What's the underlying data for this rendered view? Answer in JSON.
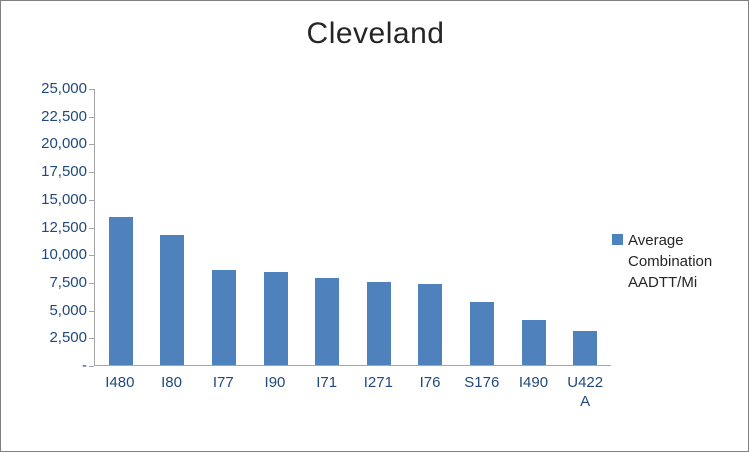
{
  "title": "Cleveland",
  "chart_data": {
    "type": "bar",
    "title": "Cleveland",
    "categories": [
      "I480",
      "I80",
      "I77",
      "I90",
      "I71",
      "I271",
      "I76",
      "S176",
      "I490",
      "U422 A"
    ],
    "values": [
      13400,
      11800,
      8600,
      8400,
      7900,
      7500,
      7300,
      5700,
      4100,
      3100
    ],
    "series": [
      {
        "name": "Average Combination AADTT/Mi",
        "values": [
          13400,
          11800,
          8600,
          8400,
          7900,
          7500,
          7300,
          5700,
          4100,
          3100
        ]
      }
    ],
    "xlabel": "",
    "ylabel": "",
    "ylim": [
      0,
      25000
    ],
    "ytick_step": 2500,
    "ytick_labels": [
      "-",
      "2,500",
      "5,000",
      "7,500",
      "10,000",
      "12,500",
      "15,000",
      "17,500",
      "20,000",
      "22,500",
      "25,000"
    ],
    "grid": false,
    "legend_position": "right",
    "bar_color": "#4f81bd"
  },
  "legend": {
    "label": "Average Combination AADTT/Mi",
    "marker_color": "#4f81bd"
  }
}
